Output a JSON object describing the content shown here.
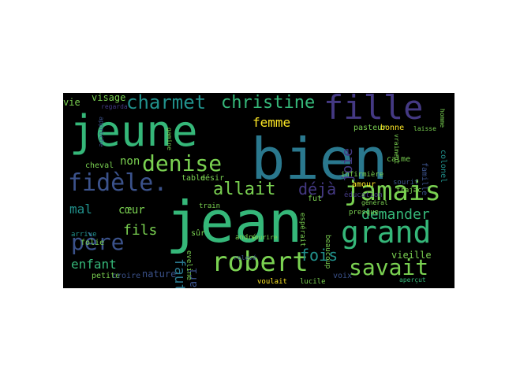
{
  "wordcloud": {
    "background": "#000000",
    "palette": [
      "#2a788e",
      "#35b779",
      "#443983",
      "#7ad151",
      "#3b528b",
      "#21918c",
      "#fde725"
    ],
    "words": [
      {
        "text": "jean",
        "size": 72,
        "color": "#35b779",
        "rot": 0
      },
      {
        "text": "bien",
        "size": 72,
        "color": "#2a788e",
        "rot": 0
      },
      {
        "text": "jeune",
        "size": 54,
        "color": "#35b779",
        "rot": 0
      },
      {
        "text": "fille",
        "size": 42,
        "color": "#443983",
        "rot": 0
      },
      {
        "text": "grand",
        "size": 38,
        "color": "#35b779",
        "rot": 0
      },
      {
        "text": "robert",
        "size": 34,
        "color": "#7ad151",
        "rot": 0
      },
      {
        "text": "jamais",
        "size": 34,
        "color": "#7ad151",
        "rot": 0
      },
      {
        "text": "fidèle.",
        "size": 30,
        "color": "#3b528b",
        "rot": 0
      },
      {
        "text": "denise",
        "size": 28,
        "color": "#7ad151",
        "rot": 0
      },
      {
        "text": "père",
        "size": 28,
        "color": "#3b528b",
        "rot": 0
      },
      {
        "text": "savait",
        "size": 28,
        "color": "#7ad151",
        "rot": 0
      },
      {
        "text": "charmet",
        "size": 24,
        "color": "#21918c",
        "rot": 0
      },
      {
        "text": "christine",
        "size": 22,
        "color": "#35b779",
        "rot": 0
      },
      {
        "text": "allait",
        "size": 22,
        "color": "#7ad151",
        "rot": 0
      },
      {
        "text": "déjà",
        "size": 20,
        "color": "#443983",
        "rot": 0
      },
      {
        "text": "femme",
        "size": 16,
        "color": "#fde725",
        "rot": 0
      },
      {
        "text": "fois",
        "size": 20,
        "color": "#21918c",
        "rot": 0
      },
      {
        "text": "demander",
        "size": 18,
        "color": "#35b779",
        "rot": 0
      },
      {
        "text": "fils",
        "size": 18,
        "color": "#7ad151",
        "rot": 0
      },
      {
        "text": "enfant",
        "size": 16,
        "color": "#35b779",
        "rot": 0
      },
      {
        "text": "mal",
        "size": 16,
        "color": "#21918c",
        "rot": 0
      },
      {
        "text": "cœur",
        "size": 14,
        "color": "#7ad151",
        "rot": 0
      },
      {
        "text": "faut",
        "size": 18,
        "color": "#2a788e",
        "rot": 90
      },
      {
        "text": "joie",
        "size": 18,
        "color": "#443983",
        "rot": -90
      },
      {
        "text": "mari",
        "size": 14,
        "color": "#3b528b",
        "rot": -90
      },
      {
        "text": "non",
        "size": 14,
        "color": "#7ad151",
        "rot": 0
      },
      {
        "text": "nature",
        "size": 12,
        "color": "#3b528b",
        "rot": 0
      },
      {
        "text": "vieille",
        "size": 12,
        "color": "#7ad151",
        "rot": 0
      },
      {
        "text": "visage",
        "size": 12,
        "color": "#7ad151",
        "rot": 0
      },
      {
        "text": "table",
        "size": 10,
        "color": "#7ad151",
        "rot": 0
      },
      {
        "text": "désir",
        "size": 10,
        "color": "#7ad151",
        "rot": 0
      },
      {
        "text": "pasteur",
        "size": 10,
        "color": "#7ad151",
        "rot": 0
      },
      {
        "text": "bonne",
        "size": 10,
        "color": "#fde725",
        "rot": 0
      },
      {
        "text": "vie",
        "size": 12,
        "color": "#7ad151",
        "rot": 0
      },
      {
        "text": "amour",
        "size": 10,
        "color": "#fde725",
        "rot": 0
      },
      {
        "text": "calme",
        "size": 10,
        "color": "#7ad151",
        "rot": 0
      },
      {
        "text": "voix",
        "size": 10,
        "color": "#3b528b",
        "rot": 0
      },
      {
        "text": "petite",
        "size": 10,
        "color": "#7ad151",
        "rot": 0
      },
      {
        "text": "croire",
        "size": 10,
        "color": "#3b528b",
        "rot": 0
      },
      {
        "text": "folie",
        "size": 10,
        "color": "#7ad151",
        "rot": 0
      },
      {
        "text": "cheval",
        "size": 10,
        "color": "#7ad151",
        "rot": 0
      },
      {
        "text": "colonel",
        "size": 10,
        "color": "#21918c",
        "rot": 90
      },
      {
        "text": "famille",
        "size": 10,
        "color": "#3b528b",
        "rot": 90
      },
      {
        "text": "sourit",
        "size": 9,
        "color": "#3b528b",
        "rot": 0
      },
      {
        "text": "infirmière",
        "size": 9,
        "color": "#7ad151",
        "rot": 0
      },
      {
        "text": "beaucoup",
        "size": 9,
        "color": "#7ad151",
        "rot": 90
      },
      {
        "text": "espérait",
        "size": 9,
        "color": "#7ad151",
        "rot": 90
      },
      {
        "text": "éducation",
        "size": 9,
        "color": "#443983",
        "rot": 0
      },
      {
        "text": "presque",
        "size": 9,
        "color": "#7ad151",
        "rot": 0
      },
      {
        "text": "arrive",
        "size": 9,
        "color": "#21918c",
        "rot": 0
      },
      {
        "text": "fut",
        "size": 10,
        "color": "#7ad151",
        "rot": 0
      },
      {
        "text": "sûr",
        "size": 10,
        "color": "#7ad151",
        "rot": 0
      },
      {
        "text": "eveline",
        "size": 9,
        "color": "#7ad151",
        "rot": 90
      },
      {
        "text": "andré",
        "size": 9,
        "color": "#7ad151",
        "rot": 0
      },
      {
        "text": "train",
        "size": 9,
        "color": "#7ad151",
        "rot": 0
      },
      {
        "text": "voulait",
        "size": 9,
        "color": "#fde725",
        "rot": 0
      },
      {
        "text": "lucile",
        "size": 9,
        "color": "#7ad151",
        "rot": 0
      },
      {
        "text": "regarda",
        "size": 8,
        "color": "#443983",
        "rot": 0
      },
      {
        "text": "approche",
        "size": 8,
        "color": "#3b528b",
        "rot": 90
      },
      {
        "text": "gamine",
        "size": 8,
        "color": "#7ad151",
        "rot": 90
      },
      {
        "text": "sourire",
        "size": 8,
        "color": "#7ad151",
        "rot": 0
      },
      {
        "text": "relevé",
        "size": 8,
        "color": "#3b528b",
        "rot": 0
      },
      {
        "text": "laisse",
        "size": 8,
        "color": "#7ad151",
        "rot": 0
      },
      {
        "text": "homme",
        "size": 8,
        "color": "#7ad151",
        "rot": 90
      },
      {
        "text": "aperçut",
        "size": 8,
        "color": "#35b779",
        "rot": 0
      },
      {
        "text": "trajac",
        "size": 9,
        "color": "#7ad151",
        "rot": 0
      },
      {
        "text": "vraiment",
        "size": 8,
        "color": "#7ad151",
        "rot": 90
      },
      {
        "text": "général",
        "size": 8,
        "color": "#7ad151",
        "rot": 0
      }
    ]
  }
}
